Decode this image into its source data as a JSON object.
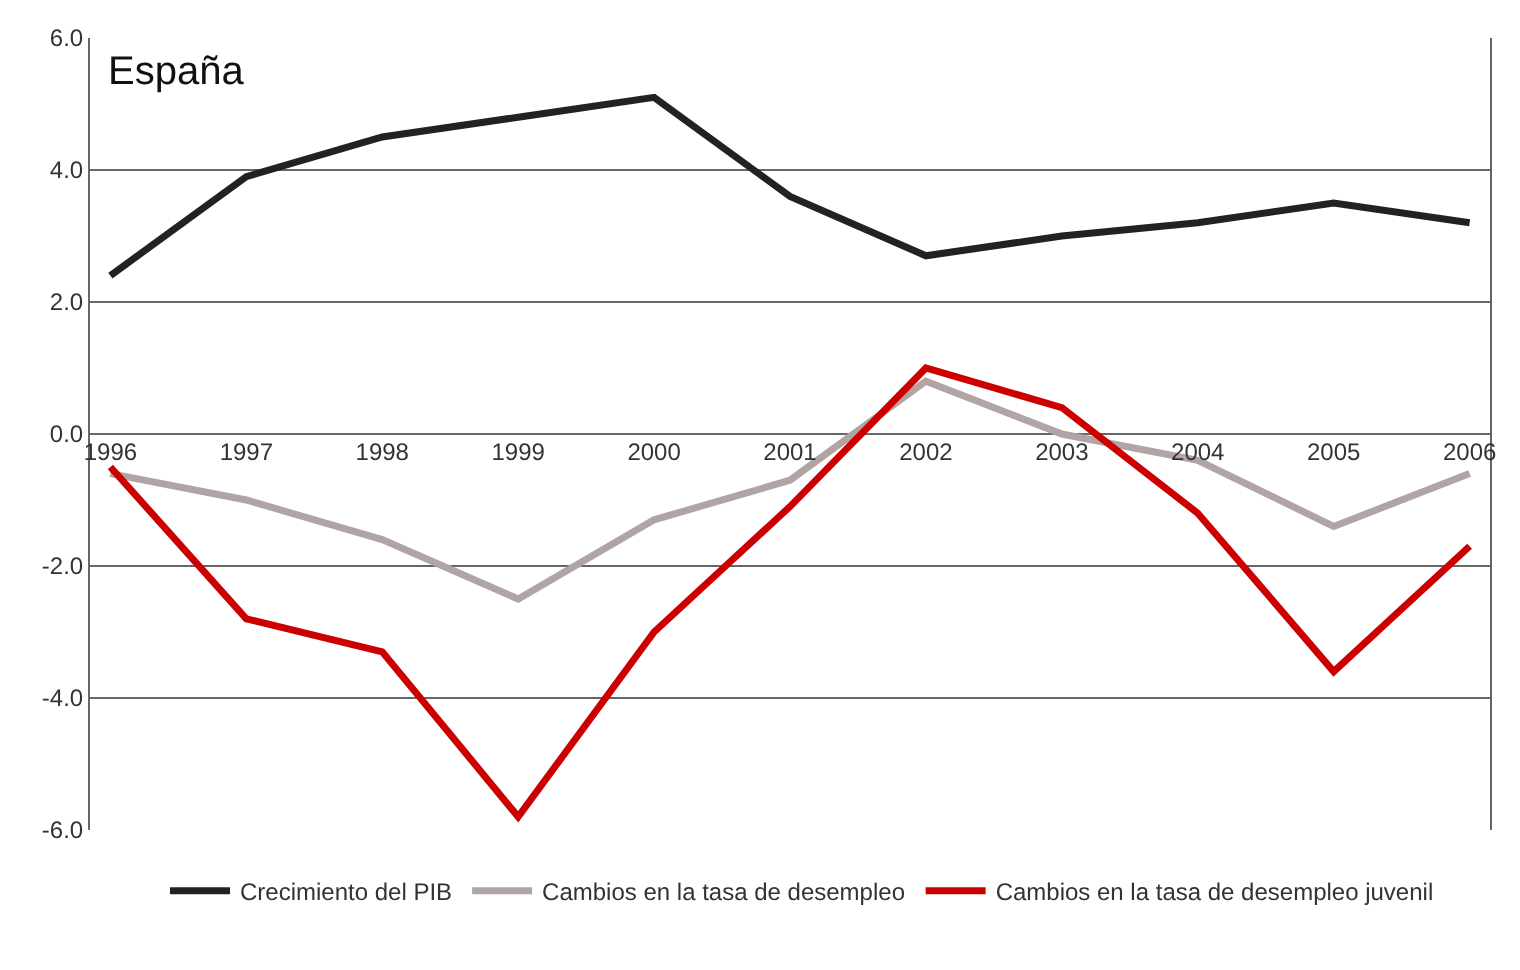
{
  "chart_data": {
    "type": "line",
    "title": "España",
    "categories": [
      "1996",
      "1997",
      "1998",
      "1999",
      "2000",
      "2001",
      "2002",
      "2003",
      "2004",
      "2005",
      "2006"
    ],
    "series": [
      {
        "name": "Crecimiento del PIB",
        "color": "#222222",
        "values": [
          2.4,
          3.9,
          4.5,
          4.8,
          5.1,
          3.6,
          2.7,
          3.0,
          3.2,
          3.5,
          3.2
        ]
      },
      {
        "name": "Cambios en la tasa de desempleo",
        "color": "#b0a4a4",
        "values": [
          -0.6,
          -1.0,
          -1.6,
          -2.5,
          -1.3,
          -0.7,
          0.8,
          0.0,
          -0.4,
          -1.4,
          -0.6
        ]
      },
      {
        "name": "Cambios en la tasa de desempleo juvenil",
        "color": "#cc0000",
        "values": [
          -0.5,
          -2.8,
          -3.3,
          -5.8,
          -3.0,
          -1.1,
          1.0,
          0.4,
          -1.2,
          -3.6,
          -1.7
        ]
      }
    ],
    "ylim": [
      -6,
      6
    ],
    "yticks": [
      {
        "value": -6,
        "label": "-6.0"
      },
      {
        "value": -4,
        "label": "-4.0"
      },
      {
        "value": -2,
        "label": "-2.0"
      },
      {
        "value": 0,
        "label": "0.0"
      },
      {
        "value": 2,
        "label": "2.0"
      },
      {
        "value": 4,
        "label": "4.0"
      },
      {
        "value": 6,
        "label": "6.0"
      }
    ],
    "grid": "y",
    "legend": "bottom",
    "marker": "none",
    "line_style": "solid"
  }
}
